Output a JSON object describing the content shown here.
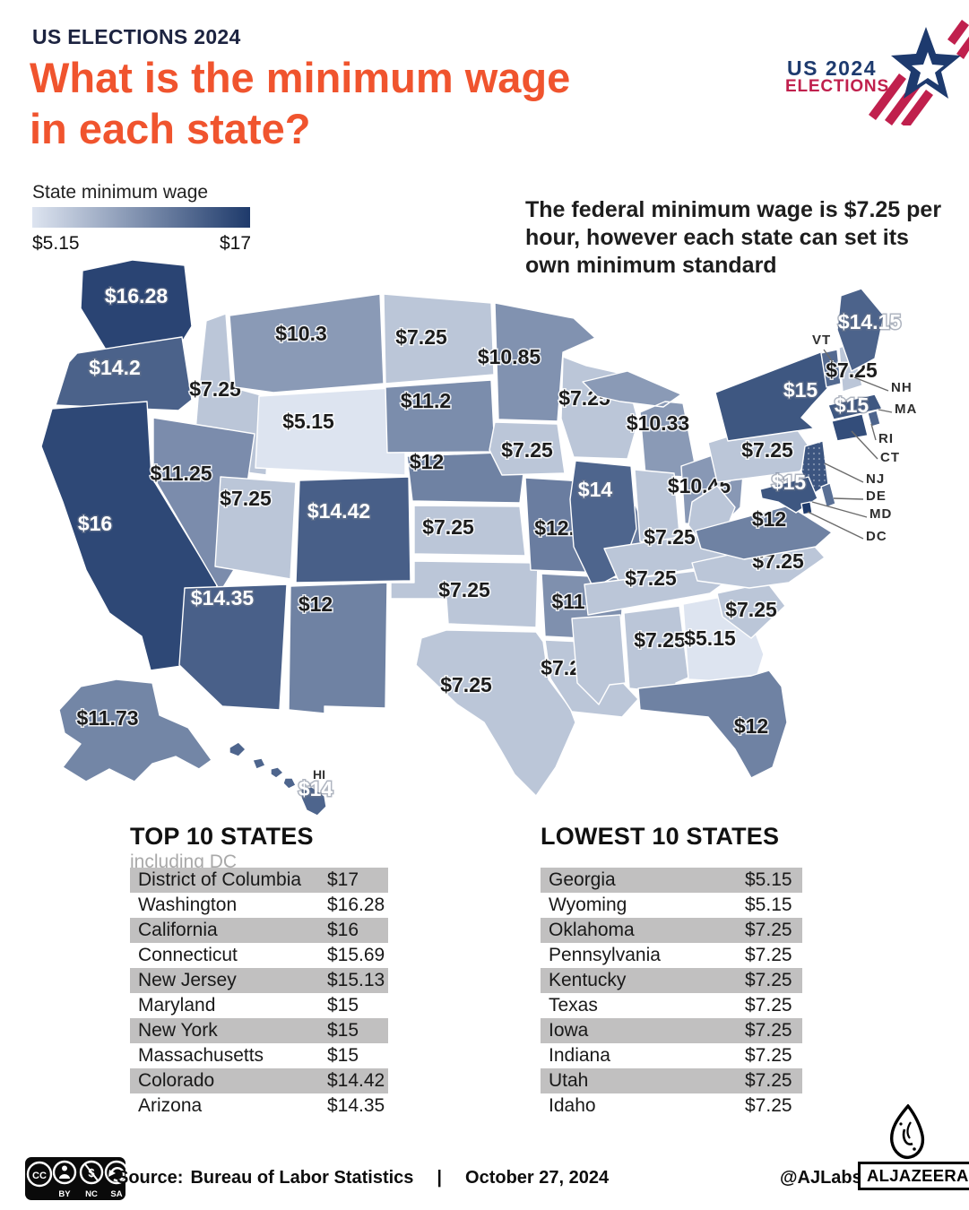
{
  "header": {
    "kicker": "US ELECTIONS 2024",
    "title_line1": "What is the minimum wage",
    "title_line2": "in each state?"
  },
  "logo": {
    "line1": "US 2024",
    "line2": "ELECTIONS"
  },
  "colors": {
    "accent": "#f0542e",
    "navy": "#1d3a6e",
    "logo_red": "#c0204d",
    "table_row_gray": "#c1c0c0"
  },
  "legend": {
    "title": "State minimum wage",
    "min_label": "$5.15",
    "max_label": "$17",
    "min_color": "#dde4f0",
    "max_color": "#1e3a6b"
  },
  "note": "The federal minimum wage is $7.25 per hour, however each state can set its own minimum standard",
  "chart_data": {
    "type": "choropleth",
    "title": "State minimum wage",
    "unit": "USD per hour",
    "scale": {
      "domain": [
        5.15,
        17
      ],
      "min_color": "#dde4f0",
      "max_color": "#1e3a6b"
    },
    "federal_minimum": 7.25,
    "hawaii_tag": "HI",
    "callouts": [
      "VT",
      "NH",
      "MA",
      "RI",
      "CT",
      "NJ",
      "DE",
      "MD",
      "DC"
    ],
    "states": [
      {
        "abbr": "WA",
        "name": "Washington",
        "value": 16.28,
        "label": "$16.28"
      },
      {
        "abbr": "OR",
        "name": "Oregon",
        "value": 14.2,
        "label": "$14.2"
      },
      {
        "abbr": "CA",
        "name": "California",
        "value": 16,
        "label": "$16"
      },
      {
        "abbr": "ID",
        "name": "Idaho",
        "value": 7.25,
        "label": "$7.25"
      },
      {
        "abbr": "NV",
        "name": "Nevada",
        "value": 11.25,
        "label": "$11.25"
      },
      {
        "abbr": "UT",
        "name": "Utah",
        "value": 7.25,
        "label": "$7.25"
      },
      {
        "abbr": "AZ",
        "name": "Arizona",
        "value": 14.35,
        "label": "$14.35"
      },
      {
        "abbr": "MT",
        "name": "Montana",
        "value": 10.3,
        "label": "$10.3"
      },
      {
        "abbr": "WY",
        "name": "Wyoming",
        "value": 5.15,
        "label": "$5.15"
      },
      {
        "abbr": "CO",
        "name": "Colorado",
        "value": 14.42,
        "label": "$14.42"
      },
      {
        "abbr": "NM",
        "name": "New Mexico",
        "value": 12,
        "label": "$12"
      },
      {
        "abbr": "ND",
        "name": "North Dakota",
        "value": 7.25,
        "label": "$7.25"
      },
      {
        "abbr": "SD",
        "name": "South Dakota",
        "value": 11.2,
        "label": "$11.2"
      },
      {
        "abbr": "NE",
        "name": "Nebraska",
        "value": 12,
        "label": "$12"
      },
      {
        "abbr": "KS",
        "name": "Kansas",
        "value": 7.25,
        "label": "$7.25"
      },
      {
        "abbr": "OK",
        "name": "Oklahoma",
        "value": 7.25,
        "label": "$7.25"
      },
      {
        "abbr": "TX",
        "name": "Texas",
        "value": 7.25,
        "label": "$7.25"
      },
      {
        "abbr": "MN",
        "name": "Minnesota",
        "value": 10.85,
        "label": "$10.85"
      },
      {
        "abbr": "IA",
        "name": "Iowa",
        "value": 7.25,
        "label": "$7.25"
      },
      {
        "abbr": "MO",
        "name": "Missouri",
        "value": 12.3,
        "label": "$12.3"
      },
      {
        "abbr": "AR",
        "name": "Arkansas",
        "value": 11,
        "label": "$11"
      },
      {
        "abbr": "LA",
        "name": "Louisiana",
        "value": 7.25,
        "label": "$7.25"
      },
      {
        "abbr": "WI",
        "name": "Wisconsin",
        "value": 7.25,
        "label": "$7.25"
      },
      {
        "abbr": "IL",
        "name": "Illinois",
        "value": 14,
        "label": "$14"
      },
      {
        "abbr": "MI",
        "name": "Michigan",
        "value": 10.33,
        "label": "$10.33"
      },
      {
        "abbr": "IN",
        "name": "Indiana",
        "value": 7.25,
        "label": ""
      },
      {
        "abbr": "OH",
        "name": "Ohio",
        "value": 10.45,
        "label": "$10.45"
      },
      {
        "abbr": "KY",
        "name": "Kentucky",
        "value": 7.25,
        "label": "$7.25"
      },
      {
        "abbr": "TN",
        "name": "Tennessee",
        "value": 7.25,
        "label": "$7.25"
      },
      {
        "abbr": "MS",
        "name": "Mississippi",
        "value": 7.25,
        "label": ""
      },
      {
        "abbr": "AL",
        "name": "Alabama",
        "value": 7.25,
        "label": "$7.25"
      },
      {
        "abbr": "GA",
        "name": "Georgia",
        "value": 5.15,
        "label": "$5.15"
      },
      {
        "abbr": "FL",
        "name": "Florida",
        "value": 12,
        "label": "$12"
      },
      {
        "abbr": "SC",
        "name": "South Carolina",
        "value": 7.25,
        "label": "$7.25"
      },
      {
        "abbr": "NC",
        "name": "North Carolina",
        "value": 7.25,
        "label": "$7.25"
      },
      {
        "abbr": "WV",
        "name": "West Virginia",
        "value": 7.25,
        "label": ""
      },
      {
        "abbr": "VA",
        "name": "Virginia",
        "value": 12,
        "label": "$12"
      },
      {
        "abbr": "PA",
        "name": "Pennsylvania",
        "value": 7.25,
        "label": "$7.25"
      },
      {
        "abbr": "NY",
        "name": "New York",
        "value": 15,
        "label": "$15"
      },
      {
        "abbr": "VT",
        "name": "Vermont",
        "value": 13.67,
        "label": ""
      },
      {
        "abbr": "NH",
        "name": "New Hampshire",
        "value": 7.25,
        "label": "$7.25"
      },
      {
        "abbr": "ME",
        "name": "Maine",
        "value": 14.15,
        "label": "$14.15"
      },
      {
        "abbr": "MA",
        "name": "Massachusetts",
        "value": 15,
        "label": "$15"
      },
      {
        "abbr": "CT",
        "name": "Connecticut",
        "value": 15.69,
        "label": ""
      },
      {
        "abbr": "RI",
        "name": "Rhode Island",
        "value": 14,
        "label": ""
      },
      {
        "abbr": "NJ",
        "name": "New Jersey",
        "value": 15.13,
        "label": ""
      },
      {
        "abbr": "MD",
        "name": "Maryland",
        "value": 15,
        "label": "$15"
      },
      {
        "abbr": "DE",
        "name": "Delaware",
        "value": 13.25,
        "label": ""
      },
      {
        "abbr": "DC",
        "name": "District of Columbia",
        "value": 17,
        "label": ""
      },
      {
        "abbr": "AK",
        "name": "Alaska",
        "value": 11.73,
        "label": "$11.73"
      },
      {
        "abbr": "HI",
        "name": "Hawaii",
        "value": 14,
        "label": "$14"
      }
    ]
  },
  "tables": {
    "top": {
      "title": "TOP 10 STATES",
      "subtitle": "including DC",
      "rows": [
        [
          "District of Columbia",
          "$17"
        ],
        [
          "Washington",
          "$16.28"
        ],
        [
          "California",
          "$16"
        ],
        [
          "Connecticut",
          "$15.69"
        ],
        [
          "New Jersey",
          "$15.13"
        ],
        [
          "Maryland",
          "$15"
        ],
        [
          "New York",
          "$15"
        ],
        [
          "Massachusetts",
          "$15"
        ],
        [
          "Colorado",
          "$14.42"
        ],
        [
          "Arizona",
          "$14.35"
        ]
      ]
    },
    "lowest": {
      "title": "LOWEST 10 STATES",
      "rows": [
        [
          "Georgia",
          "$5.15"
        ],
        [
          "Wyoming",
          "$5.15"
        ],
        [
          "Oklahoma",
          "$7.25"
        ],
        [
          "Pennsylvania",
          "$7.25"
        ],
        [
          "Kentucky",
          "$7.25"
        ],
        [
          "Texas",
          "$7.25"
        ],
        [
          "Iowa",
          "$7.25"
        ],
        [
          "Indiana",
          "$7.25"
        ],
        [
          "Utah",
          "$7.25"
        ],
        [
          "Idaho",
          "$7.25"
        ]
      ]
    }
  },
  "footer": {
    "cc_brand": "CC",
    "cc_labels": [
      "BY",
      "NC",
      "SA"
    ],
    "source_label": "Source:",
    "source": "Bureau of Labor Statistics",
    "divider": "|",
    "date": "October 27, 2024",
    "credit": "@AJLabs",
    "brand": "ALJAZEERA"
  }
}
